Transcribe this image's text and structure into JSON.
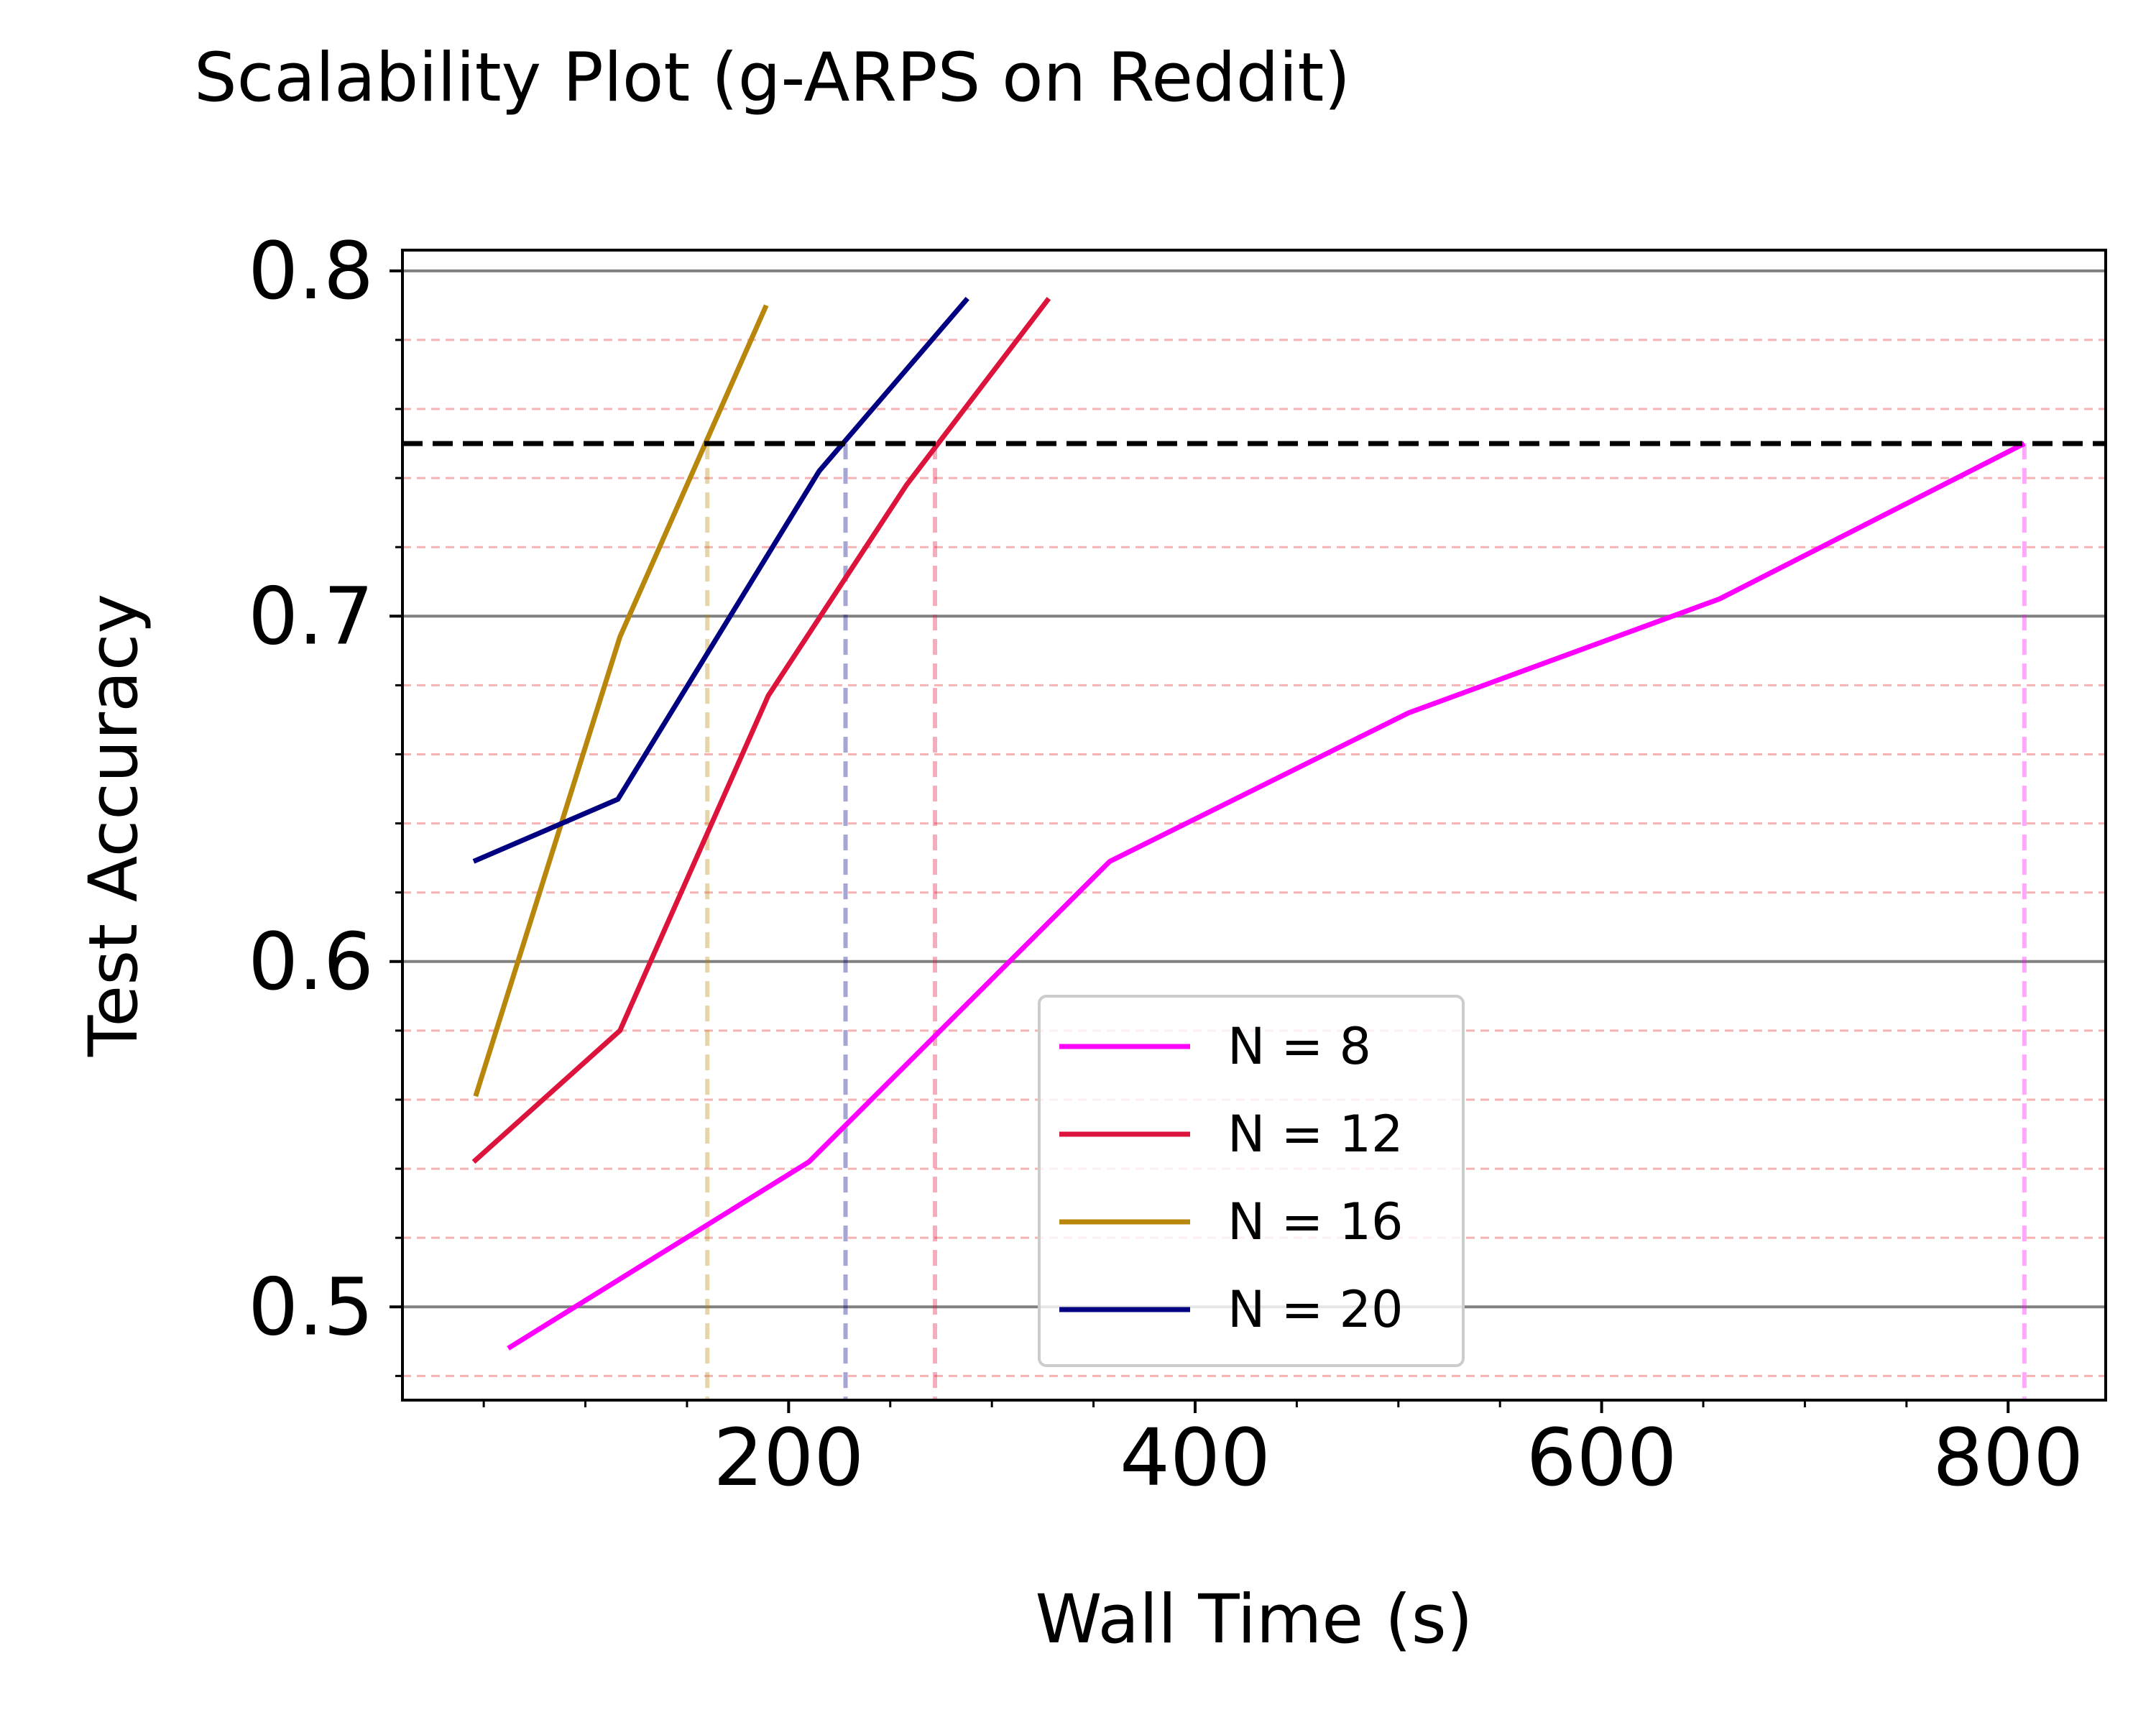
{
  "chart_data": {
    "type": "line",
    "title": "Scalability Plot (g-ARPS on Reddit)",
    "xlabel": "Wall Time (s)",
    "ylabel": "Test Accuracy",
    "xlim": [
      10,
      848
    ],
    "ylim": [
      0.473,
      0.806
    ],
    "xticks": [
      200,
      400,
      600,
      800
    ],
    "xtick_labels": [
      "200",
      "400",
      "600",
      "800"
    ],
    "x_minor_ticks": [
      50,
      100,
      150,
      250,
      300,
      350,
      450,
      500,
      550,
      650,
      700,
      750
    ],
    "yticks": [
      0.5,
      0.6,
      0.7,
      0.8
    ],
    "ytick_labels": [
      "0.5",
      "0.6",
      "0.7",
      "0.8"
    ],
    "y_minor_ticks": [
      0.48,
      0.52,
      0.54,
      0.56,
      0.58,
      0.62,
      0.64,
      0.66,
      0.68,
      0.72,
      0.74,
      0.76,
      0.78
    ],
    "grid": {
      "major_y": true,
      "minor_y_dashed": true,
      "major_color": "#808080",
      "minor_color": "#f5b3b3"
    },
    "threshold": {
      "y": 0.75,
      "color": "#000000",
      "style": "dashed"
    },
    "legend": {
      "position": "bottom-center"
    },
    "series": [
      {
        "name": "N = 8",
        "color": "#ff00ff",
        "x": [
          62,
          210,
          358,
          505,
          658,
          808
        ],
        "y": [
          0.488,
          0.542,
          0.629,
          0.672,
          0.705,
          0.75
        ],
        "target_time": 808
      },
      {
        "name": "N = 12",
        "color": "#dc143c",
        "x": [
          45,
          117,
          190,
          258,
          328
        ],
        "y": [
          0.542,
          0.58,
          0.677,
          0.738,
          0.792
        ],
        "target_time": 272
      },
      {
        "name": "N = 16",
        "color": "#b8860b",
        "x": [
          46,
          117,
          189
        ],
        "y": [
          0.561,
          0.694,
          0.79
        ],
        "target_time": 160
      },
      {
        "name": "N = 20",
        "color": "#000080",
        "x": [
          45,
          116,
          215,
          288
        ],
        "y": [
          0.629,
          0.647,
          0.742,
          0.792
        ],
        "target_time": 228
      }
    ]
  }
}
